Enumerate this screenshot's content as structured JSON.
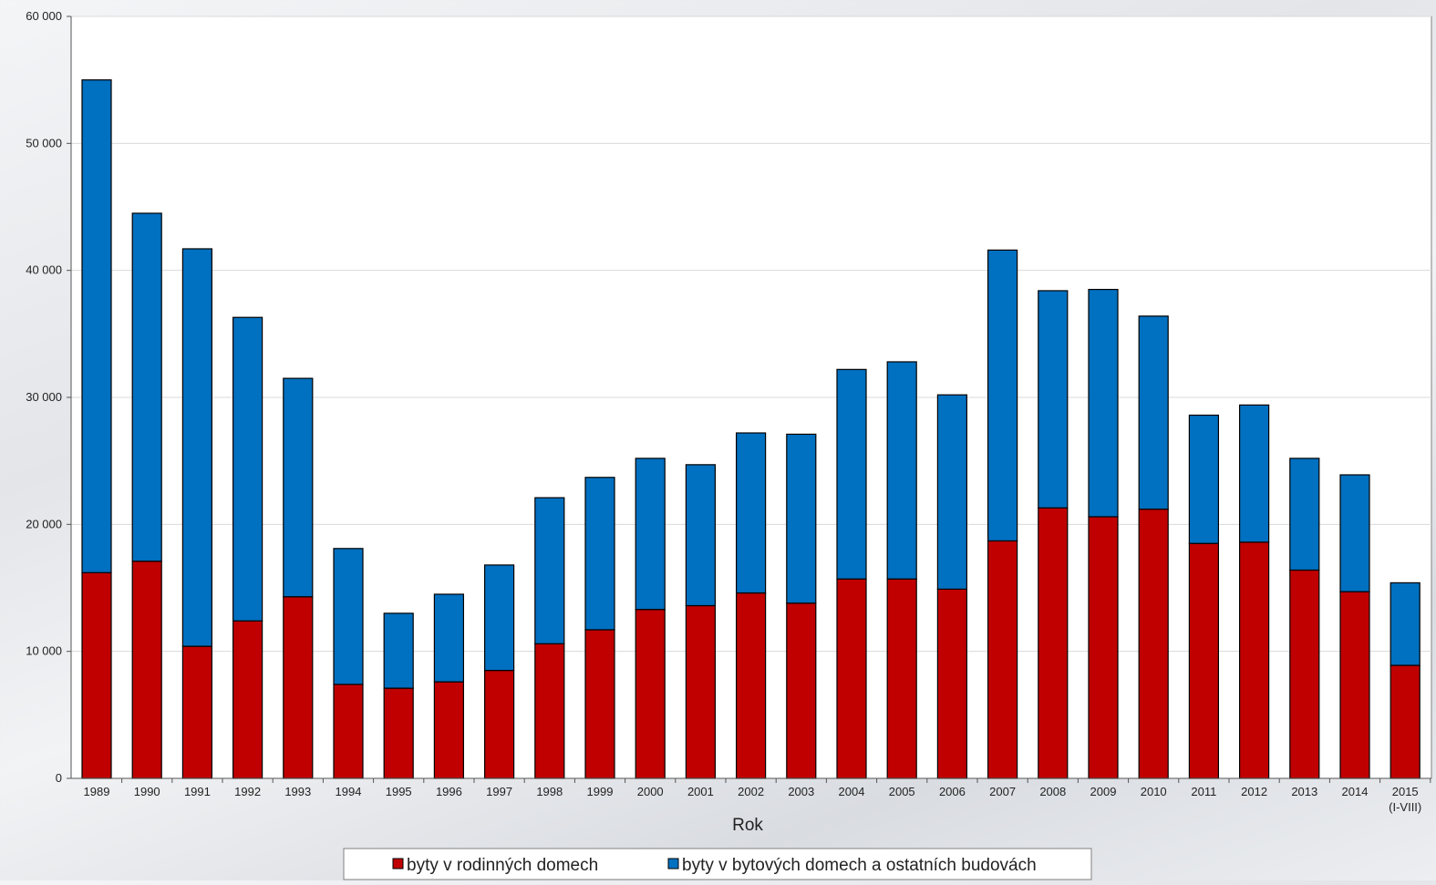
{
  "chart_data": {
    "type": "bar",
    "stacked": true,
    "title": "",
    "xlabel": "Rok",
    "ylabel": "",
    "ylim": [
      0,
      60000
    ],
    "yticks": [
      0,
      10000,
      20000,
      30000,
      40000,
      50000,
      60000
    ],
    "ytick_labels": [
      "0",
      "10 000",
      "20 000",
      "30 000",
      "40 000",
      "50 000",
      "60 000"
    ],
    "grid": true,
    "legend_position": "bottom",
    "categories": [
      "1989",
      "1990",
      "1991",
      "1992",
      "1993",
      "1994",
      "1995",
      "1996",
      "1997",
      "1998",
      "1999",
      "2000",
      "2001",
      "2002",
      "2003",
      "2004",
      "2005",
      "2006",
      "2007",
      "2008",
      "2009",
      "2010",
      "2011",
      "2012",
      "2013",
      "2014",
      "2015"
    ],
    "category_sublabels": {
      "2015": "(I-VIII)"
    },
    "series": [
      {
        "name": "byty v rodinných domech",
        "color": "#c00000",
        "values": [
          16200,
          17100,
          10400,
          12400,
          14300,
          7400,
          7100,
          7600,
          8500,
          10600,
          11700,
          13300,
          13600,
          14600,
          13800,
          15700,
          15700,
          14900,
          18700,
          21300,
          20600,
          21200,
          18500,
          18600,
          16400,
          14700,
          8900
        ]
      },
      {
        "name": "byty v bytových domech a ostatních budovách",
        "color": "#0070c0",
        "values": [
          38800,
          27400,
          31300,
          23900,
          17200,
          10700,
          5900,
          6900,
          8300,
          11500,
          12000,
          11900,
          11100,
          12600,
          13300,
          16500,
          17100,
          15300,
          22900,
          17100,
          17900,
          15200,
          10100,
          10800,
          8800,
          9200,
          6500
        ]
      }
    ]
  }
}
